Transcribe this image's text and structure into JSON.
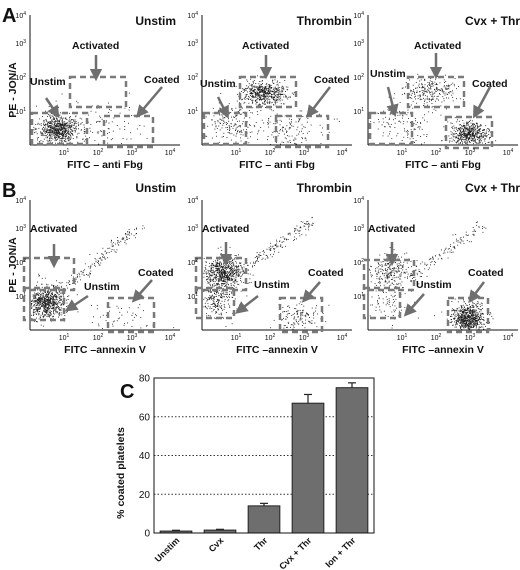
{
  "panels": {
    "A": {
      "letter": "A",
      "y_label": "PE - JON/A",
      "x_label": "FITC – anti Fbg",
      "tick_base": "10",
      "tick_exps": [
        "1",
        "2",
        "3",
        "4"
      ],
      "plots": [
        {
          "title": "Unstim",
          "labels": [
            "Unstim",
            "Activated",
            "Coated"
          ]
        },
        {
          "title": "Thrombin",
          "labels": [
            "Unstim",
            "Activated",
            "Coated"
          ]
        },
        {
          "title": "Cvx + Thr",
          "labels": [
            "Unstim",
            "Activated",
            "Coated"
          ]
        }
      ]
    },
    "B": {
      "letter": "B",
      "y_label": "PE - JON/A",
      "x_label": "FITC –annexin V",
      "tick_base": "10",
      "tick_exps": [
        "1",
        "2",
        "3",
        "4"
      ],
      "plots": [
        {
          "title": "Unstim",
          "labels": [
            "Activated",
            "Unstim",
            "Coated"
          ]
        },
        {
          "title": "Thrombin",
          "labels": [
            "Activated",
            "Unstim",
            "Coated"
          ]
        },
        {
          "title": "Cvx + Thr",
          "labels": [
            "Activated",
            "Unstim",
            "Coated"
          ]
        }
      ]
    },
    "C": {
      "letter": "C"
    }
  },
  "chart_data": {
    "type": "bar",
    "categories": [
      "Unstim",
      "Cvx",
      "Thr",
      "Cvx + Thr",
      "Ion + Thr"
    ],
    "values": [
      1,
      1.5,
      14,
      67,
      75
    ],
    "errors": [
      0.4,
      0.4,
      1.3,
      4.5,
      2.5
    ],
    "ylabel": "% coated platelets",
    "ylim": [
      0,
      80
    ],
    "yticks": [
      0,
      20,
      40,
      60,
      80
    ],
    "grid": true,
    "bar_color": "#6e6e6e"
  },
  "colors": {
    "box": "#7a7a7a",
    "arrow": "#6f6f6f",
    "dots": "#1a1a1a"
  }
}
